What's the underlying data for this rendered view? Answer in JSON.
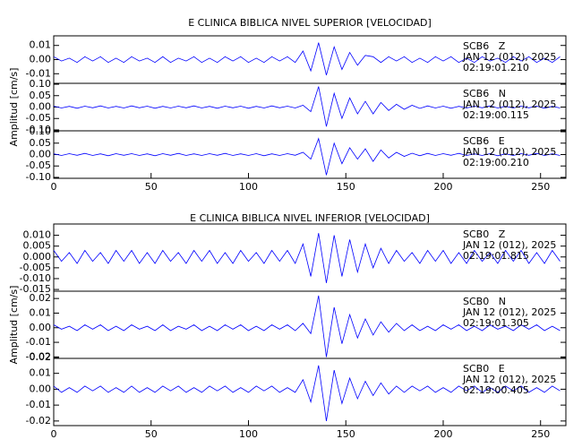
{
  "chart_data": [
    {
      "type": "line",
      "title": "E CLINICA BIBLICA NIVEL SUPERIOR [VELOCIDAD]",
      "ylabel": "Amplitud [cm/s]",
      "xlim": [
        0,
        263
      ],
      "xticks": [
        0,
        50,
        100,
        150,
        200,
        250
      ],
      "color": "#0000ff",
      "x": [
        0,
        4,
        8,
        12,
        16,
        20,
        24,
        28,
        32,
        36,
        40,
        44,
        48,
        52,
        56,
        60,
        64,
        68,
        72,
        76,
        80,
        84,
        88,
        92,
        96,
        100,
        104,
        108,
        112,
        116,
        120,
        124,
        128,
        132,
        136,
        140,
        144,
        148,
        152,
        156,
        160,
        164,
        168,
        172,
        176,
        180,
        184,
        188,
        192,
        196,
        200,
        204,
        208,
        212,
        216,
        220,
        224,
        228,
        232,
        236,
        240,
        244,
        248,
        252,
        256,
        260
      ],
      "panels": [
        {
          "station": "SCB6   Z",
          "date": "JAN 12 (012), 2025",
          "time": "02:19:01.210",
          "ylim": [
            -0.0168,
            0.0168
          ],
          "yticks": [
            {
              "value": 0.01,
              "label": "0.01"
            },
            {
              "value": 0,
              "label": "0.00"
            },
            {
              "value": -0.01,
              "label": "-0.01"
            }
          ],
          "values": [
            0.002,
            -0.001,
            0.001,
            -0.002,
            0.002,
            -0.001,
            0.002,
            -0.002,
            0.001,
            -0.002,
            0.002,
            -0.001,
            0.001,
            -0.002,
            0.002,
            -0.002,
            0.001,
            -0.001,
            0.002,
            -0.002,
            0.001,
            -0.002,
            0.002,
            -0.001,
            0.002,
            -0.002,
            0.001,
            -0.002,
            0.002,
            -0.001,
            0.002,
            -0.002,
            0.006,
            -0.008,
            0.012,
            -0.011,
            0.009,
            -0.007,
            0.005,
            -0.004,
            0.003,
            0.002,
            -0.002,
            0.002,
            -0.001,
            0.002,
            -0.002,
            0.001,
            -0.002,
            0.002,
            -0.001,
            0.002,
            -0.002,
            0.001,
            -0.002,
            0.002,
            -0.001,
            0.001,
            -0.002,
            0.002,
            -0.001,
            0.002,
            -0.002,
            0.001,
            -0.002,
            0.002
          ]
        },
        {
          "station": "SCB6   N",
          "date": "JAN 12 (012), 2025",
          "time": "02:19:00.115",
          "ylim": [
            -0.104,
            0.104
          ],
          "yticks": [
            {
              "value": 0.1,
              "label": "0.10"
            },
            {
              "value": 0.05,
              "label": "0.05"
            },
            {
              "value": 0,
              "label": "0.00"
            },
            {
              "value": -0.05,
              "label": "-0.05"
            },
            {
              "value": -0.1,
              "label": "-0.10"
            }
          ],
          "values": [
            0.004,
            -0.004,
            0.003,
            -0.005,
            0.004,
            -0.003,
            0.005,
            -0.004,
            0.003,
            -0.004,
            0.005,
            -0.003,
            0.004,
            -0.005,
            0.003,
            -0.004,
            0.004,
            -0.003,
            0.005,
            -0.004,
            0.003,
            -0.005,
            0.004,
            -0.003,
            0.004,
            -0.005,
            0.003,
            -0.004,
            0.005,
            -0.003,
            0.004,
            -0.004,
            0.008,
            -0.02,
            0.09,
            -0.085,
            0.06,
            -0.05,
            0.04,
            -0.03,
            0.025,
            -0.03,
            0.02,
            -0.015,
            0.012,
            -0.01,
            0.008,
            -0.006,
            0.005,
            -0.004,
            0.004,
            -0.005,
            0.003,
            -0.004,
            0.004,
            -0.003,
            0.005,
            -0.004,
            0.003,
            -0.004,
            0.004,
            -0.003,
            0.004,
            -0.005,
            0.003,
            -0.004
          ]
        },
        {
          "station": "SCB6   E",
          "date": "JAN 12 (012), 2025",
          "time": "02:19:00.210",
          "ylim": [
            -0.104,
            0.104
          ],
          "yticks": [
            {
              "value": 0.1,
              "label": "0.10"
            },
            {
              "value": 0.05,
              "label": "0.05"
            },
            {
              "value": 0,
              "label": "0.00"
            },
            {
              "value": -0.05,
              "label": "-0.05"
            },
            {
              "value": -0.1,
              "label": "-0.10"
            }
          ],
          "values": [
            0.003,
            -0.004,
            0.004,
            -0.003,
            0.005,
            -0.004,
            0.003,
            -0.005,
            0.004,
            -0.003,
            0.004,
            -0.004,
            0.003,
            -0.005,
            0.004,
            -0.003,
            0.005,
            -0.004,
            0.003,
            -0.004,
            0.004,
            -0.003,
            0.005,
            -0.004,
            0.003,
            -0.004,
            0.004,
            -0.005,
            0.003,
            -0.004,
            0.004,
            -0.003,
            0.01,
            -0.02,
            0.07,
            -0.09,
            0.05,
            -0.04,
            0.03,
            -0.02,
            0.025,
            -0.03,
            0.02,
            -0.015,
            0.01,
            -0.008,
            0.006,
            -0.005,
            0.005,
            -0.004,
            0.004,
            -0.003,
            0.005,
            -0.004,
            0.003,
            -0.004,
            0.004,
            -0.005,
            0.003,
            -0.004,
            0.004,
            -0.003,
            0.005,
            -0.004,
            0.003,
            -0.004
          ]
        }
      ]
    },
    {
      "type": "line",
      "title": "E CLINICA BIBLICA NIVEL INFERIOR [VELOCIDAD]",
      "ylabel": "Amplitud [cm/s]",
      "xlim": [
        0,
        263
      ],
      "xticks": [
        0,
        50,
        100,
        150,
        200,
        250
      ],
      "color": "#0000ff",
      "x": [
        0,
        4,
        8,
        12,
        16,
        20,
        24,
        28,
        32,
        36,
        40,
        44,
        48,
        52,
        56,
        60,
        64,
        68,
        72,
        76,
        80,
        84,
        88,
        92,
        96,
        100,
        104,
        108,
        112,
        116,
        120,
        124,
        128,
        132,
        136,
        140,
        144,
        148,
        152,
        156,
        160,
        164,
        168,
        172,
        176,
        180,
        184,
        188,
        192,
        196,
        200,
        204,
        208,
        212,
        216,
        220,
        224,
        228,
        232,
        236,
        240,
        244,
        248,
        252,
        256,
        260
      ],
      "panels": [
        {
          "station": "SCB0   Z",
          "date": "JAN 12 (012), 2025",
          "time": "02:19:01.815",
          "ylim": [
            -0.0158,
            0.0152
          ],
          "yticks": [
            {
              "value": 0.01,
              "label": "0.010"
            },
            {
              "value": 0.005,
              "label": "0.005"
            },
            {
              "value": 0,
              "label": "0.000"
            },
            {
              "value": -0.005,
              "label": "-0.005"
            },
            {
              "value": -0.01,
              "label": "-0.010"
            },
            {
              "value": -0.015,
              "label": "-0.015"
            }
          ],
          "values": [
            0.003,
            -0.002,
            0.002,
            -0.003,
            0.003,
            -0.002,
            0.002,
            -0.003,
            0.003,
            -0.002,
            0.003,
            -0.003,
            0.002,
            -0.003,
            0.003,
            -0.002,
            0.002,
            -0.003,
            0.003,
            -0.002,
            0.003,
            -0.003,
            0.002,
            -0.003,
            0.003,
            -0.002,
            0.002,
            -0.003,
            0.003,
            -0.002,
            0.003,
            -0.003,
            0.006,
            -0.009,
            0.011,
            -0.012,
            0.01,
            -0.009,
            0.008,
            -0.007,
            0.006,
            -0.005,
            0.004,
            -0.003,
            0.003,
            -0.002,
            0.002,
            -0.003,
            0.003,
            -0.002,
            0.003,
            -0.003,
            0.002,
            -0.003,
            0.003,
            -0.002,
            0.002,
            -0.003,
            0.003,
            -0.002,
            0.003,
            -0.003,
            0.002,
            -0.003,
            0.003,
            -0.002
          ]
        },
        {
          "station": "SCB0   N",
          "date": "JAN 12 (012), 2025",
          "time": "02:19:01.305",
          "ylim": [
            -0.021,
            0.025
          ],
          "yticks": [
            {
              "value": 0.02,
              "label": "0.02"
            },
            {
              "value": 0.01,
              "label": "0.01"
            },
            {
              "value": 0,
              "label": "0.00"
            },
            {
              "value": -0.01,
              "label": "-0.01"
            },
            {
              "value": -0.02,
              "label": "-0.02"
            }
          ],
          "values": [
            0.002,
            -0.001,
            0.001,
            -0.002,
            0.002,
            -0.001,
            0.002,
            -0.002,
            0.001,
            -0.002,
            0.002,
            -0.001,
            0.001,
            -0.002,
            0.002,
            -0.002,
            0.001,
            -0.001,
            0.002,
            -0.002,
            0.001,
            -0.002,
            0.002,
            -0.001,
            0.002,
            -0.002,
            0.001,
            -0.002,
            0.002,
            -0.001,
            0.002,
            -0.002,
            0.003,
            -0.004,
            0.022,
            -0.02,
            0.014,
            -0.011,
            0.009,
            -0.007,
            0.006,
            -0.005,
            0.004,
            -0.003,
            0.003,
            -0.002,
            0.002,
            -0.002,
            0.001,
            -0.002,
            0.002,
            -0.001,
            0.002,
            -0.002,
            0.001,
            -0.002,
            0.002,
            -0.001,
            0.001,
            -0.002,
            0.002,
            -0.001,
            0.002,
            -0.002,
            0.001,
            -0.002
          ]
        },
        {
          "station": "SCB0   E",
          "date": "JAN 12 (012), 2025",
          "time": "02:19:00.405",
          "ylim": [
            -0.0229,
            0.0194
          ],
          "yticks": [
            {
              "value": 0.02,
              "label": "0.02"
            },
            {
              "value": 0.01,
              "label": "0.01"
            },
            {
              "value": 0,
              "label": "0.00"
            },
            {
              "value": -0.01,
              "label": "-0.01"
            },
            {
              "value": -0.02,
              "label": "-0.02"
            }
          ],
          "values": [
            0.002,
            -0.002,
            0.001,
            -0.002,
            0.002,
            -0.001,
            0.002,
            -0.002,
            0.001,
            -0.002,
            0.002,
            -0.002,
            0.001,
            -0.002,
            0.002,
            -0.001,
            0.002,
            -0.002,
            0.001,
            -0.002,
            0.002,
            -0.001,
            0.002,
            -0.002,
            0.001,
            -0.002,
            0.002,
            -0.001,
            0.002,
            -0.002,
            0.001,
            -0.002,
            0.006,
            -0.008,
            0.015,
            -0.02,
            0.012,
            -0.009,
            0.007,
            -0.006,
            0.005,
            -0.004,
            0.004,
            -0.003,
            0.002,
            -0.002,
            0.002,
            -0.001,
            0.002,
            -0.002,
            0.001,
            -0.002,
            0.002,
            -0.001,
            0.002,
            -0.002,
            0.001,
            -0.002,
            0.002,
            -0.001,
            0.002,
            -0.002,
            0.001,
            -0.002,
            0.002,
            -0.001
          ]
        }
      ]
    }
  ]
}
